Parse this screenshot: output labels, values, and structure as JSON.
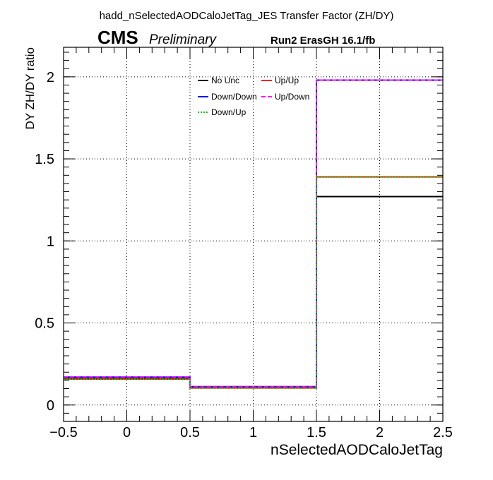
{
  "header": {
    "title": "hadd_nSelectedAODCaloJetTag_JES Transfer Factor (ZH/DY)",
    "cms": "CMS",
    "preliminary": "Preliminary",
    "run_label": "Run2 ErasGH 16.1/fb"
  },
  "chart_data": {
    "type": "line",
    "style": "step-histogram",
    "xlabel": "nSelectedAODCaloJetTag",
    "ylabel": "DY ZH/DY ratio",
    "xlim": [
      -0.5,
      2.5
    ],
    "ylim": [
      -0.1,
      2.18
    ],
    "grid": true,
    "legend_position": "top-center",
    "bin_edges": [
      -0.5,
      0.5,
      1.5,
      2.5
    ],
    "x_ticks": [
      "-0.5",
      "0",
      "0.5",
      "1",
      "1.5",
      "2",
      "2.5"
    ],
    "y_ticks": [
      "0",
      "0.5",
      "1",
      "1.5",
      "2"
    ],
    "series": [
      {
        "name": "No Unc",
        "color": "#000000",
        "dash": "solid",
        "values": [
          0.165,
          0.108,
          1.27
        ]
      },
      {
        "name": "Up/Up",
        "color": "#ff0000",
        "dash": "solid",
        "values": [
          0.158,
          0.104,
          1.39
        ]
      },
      {
        "name": "Down/Down",
        "color": "#0000ff",
        "dash": "solid",
        "values": [
          0.17,
          0.112,
          1.98
        ]
      },
      {
        "name": "Up/Down",
        "color": "#ff00ff",
        "dash": "dashed",
        "values": [
          0.17,
          0.112,
          1.98
        ]
      },
      {
        "name": "Down/Up",
        "color": "#00cc00",
        "dash": "dotted",
        "values": [
          0.158,
          0.104,
          1.39
        ]
      }
    ]
  }
}
